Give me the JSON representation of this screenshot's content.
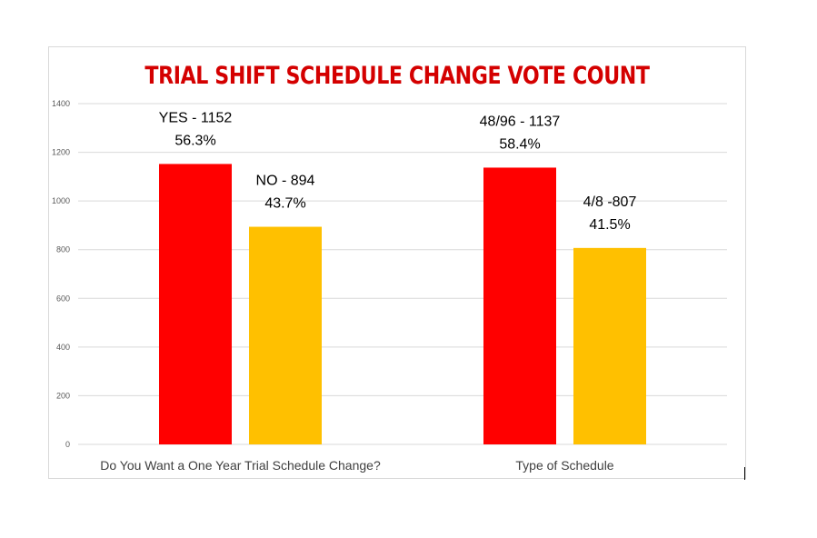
{
  "chart_data": {
    "type": "bar",
    "title": "TRIAL SHIFT SCHEDULE CHANGE VOTE COUNT",
    "ylim": [
      0,
      1400
    ],
    "yticks": [
      "0",
      "200",
      "400",
      "600",
      "800",
      "1000",
      "1200",
      "1400"
    ],
    "grid": true,
    "groups": [
      {
        "category": "Do You Want a One Year Trial Schedule Change?",
        "bars": [
          {
            "value": 1152,
            "color": "#ff0000",
            "label_line1": "YES - 1152",
            "label_line2": "56.3%"
          },
          {
            "value": 894,
            "color": "#ffc000",
            "label_line1": "NO - 894",
            "label_line2": "43.7%"
          }
        ]
      },
      {
        "category": "Type of Schedule",
        "bars": [
          {
            "value": 1137,
            "color": "#ff0000",
            "label_line1": "48/96 - 1137",
            "label_line2": "58.4%"
          },
          {
            "value": 807,
            "color": "#ffc000",
            "label_line1": "4/8 -807",
            "label_line2": "41.5%"
          }
        ]
      }
    ]
  }
}
